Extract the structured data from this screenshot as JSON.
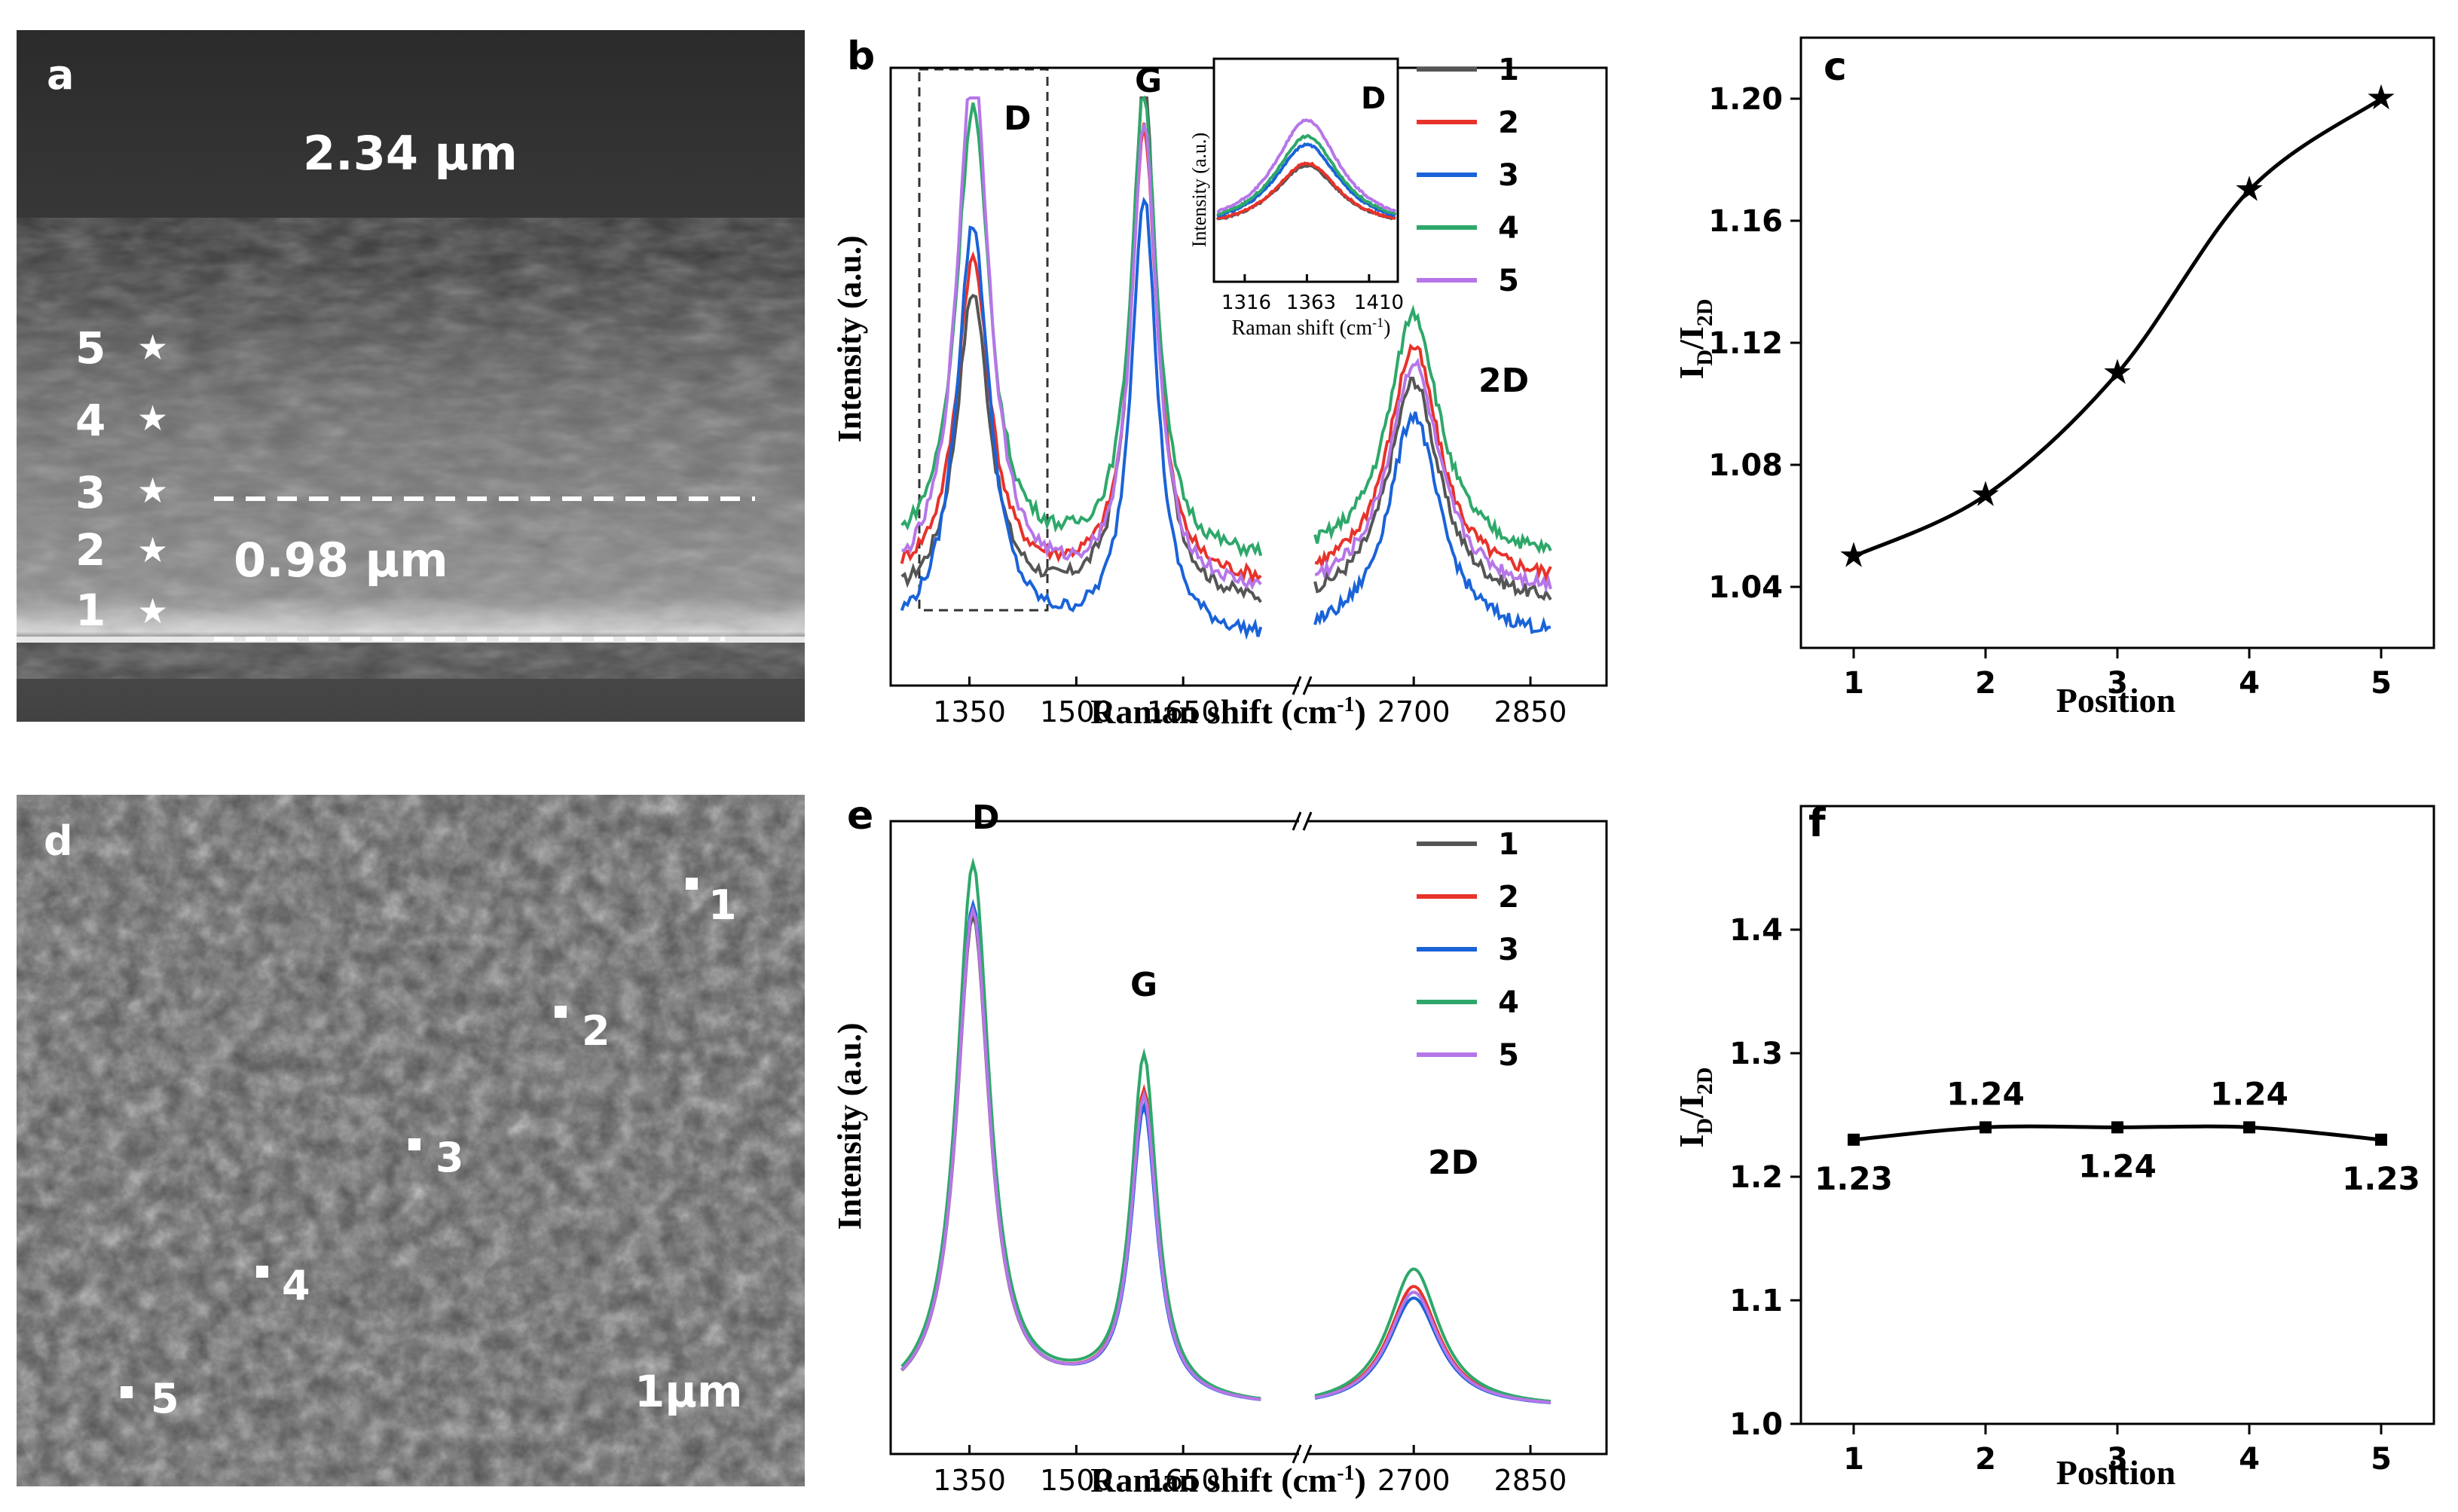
{
  "panel_a": {
    "label": "a",
    "thickness_top": "2.34 μm",
    "thickness_bottom": "0.98 μm",
    "positions": [
      "1",
      "2",
      "3",
      "4",
      "5"
    ],
    "star_color": "#ffffff"
  },
  "panel_d": {
    "label": "d",
    "positions": [
      "1",
      "2",
      "3",
      "4",
      "5"
    ],
    "scale_bar": "1μm"
  },
  "chart_data": [
    {
      "id": "b",
      "panel_label": "b",
      "type": "line",
      "title": "",
      "xlabel": "Raman shift (cm",
      "xlabel_sup": "-1",
      "xlabel_end": ")",
      "ylabel": "Intensity (a.u.)",
      "xticks_left": [
        1350,
        1500,
        1650
      ],
      "xticks_right": [
        2700,
        2850
      ],
      "xlim_left": [
        1250,
        1800
      ],
      "xlim_right": [
        2570,
        2880
      ],
      "peaks": [
        "D",
        "G",
        "2D"
      ],
      "legend": [
        "1",
        "2",
        "3",
        "4",
        "5"
      ],
      "series_colors": [
        "#555555",
        "#e8322a",
        "#1a63d8",
        "#2ea86a",
        "#b676e8"
      ],
      "series": [
        {
          "name": "1",
          "D": 0.55,
          "G": 0.92,
          "D2": 0.4,
          "base": 0.1
        },
        {
          "name": "2",
          "D": 0.57,
          "G": 0.8,
          "D2": 0.42,
          "base": 0.14
        },
        {
          "name": "3",
          "D": 0.73,
          "G": 0.78,
          "D2": 0.4,
          "base": 0.04
        },
        {
          "name": "4",
          "D": 0.8,
          "G": 0.82,
          "D2": 0.44,
          "base": 0.18
        },
        {
          "name": "5",
          "D": 0.94,
          "G": 0.82,
          "D2": 0.41,
          "base": 0.12
        }
      ],
      "inset": {
        "peak_label": "D",
        "xlabel": "Raman shift (cm",
        "xlabel_sup": "-1",
        "xlabel_end": ")",
        "ylabel": "Intensity (a.u.)",
        "xticks": [
          1316,
          1363,
          1410
        ]
      }
    },
    {
      "id": "c",
      "panel_label": "c",
      "type": "line",
      "xlabel": "Position",
      "ylabel_main": "I",
      "ylabel_sub1": "D",
      "ylabel_slash": "/I",
      "ylabel_sub2": "2D",
      "x": [
        1,
        2,
        3,
        4,
        5
      ],
      "values": [
        1.05,
        1.07,
        1.11,
        1.17,
        1.2
      ],
      "ylim": [
        1.02,
        1.22
      ],
      "yticks": [
        "1.04",
        "1.08",
        "1.12",
        "1.16",
        "1.20"
      ],
      "xticks": [
        "1",
        "2",
        "3",
        "4",
        "5"
      ],
      "marker": "star"
    },
    {
      "id": "e",
      "panel_label": "e",
      "type": "line",
      "xlabel": "Raman shift (cm",
      "xlabel_sup": "-1",
      "xlabel_end": ")",
      "ylabel": "Intensity (a.u.)",
      "xticks_left": [
        1350,
        1500,
        1650
      ],
      "xticks_right": [
        2700,
        2850
      ],
      "xlim_left": [
        1250,
        1800
      ],
      "xlim_right": [
        2570,
        2880
      ],
      "peaks": [
        "D",
        "G",
        "2D"
      ],
      "legend": [
        "1",
        "2",
        "3",
        "4",
        "5"
      ],
      "series_colors": [
        "#555555",
        "#e8322a",
        "#1a63d8",
        "#2ea86a",
        "#b676e8"
      ],
      "series": [
        {
          "name": "1",
          "D": 0.84,
          "G": 0.52,
          "D2": 0.2
        },
        {
          "name": "2",
          "D": 0.85,
          "G": 0.53,
          "D2": 0.21
        },
        {
          "name": "3",
          "D": 0.86,
          "G": 0.5,
          "D2": 0.19
        },
        {
          "name": "4",
          "D": 0.93,
          "G": 0.59,
          "D2": 0.24
        },
        {
          "name": "5",
          "D": 0.85,
          "G": 0.52,
          "D2": 0.2
        }
      ]
    },
    {
      "id": "f",
      "panel_label": "f",
      "type": "line",
      "xlabel": "Position",
      "ylabel_main": "I",
      "ylabel_sub1": "D",
      "ylabel_slash": "/I",
      "ylabel_sub2": "2D",
      "x": [
        1,
        2,
        3,
        4,
        5
      ],
      "values": [
        1.23,
        1.24,
        1.24,
        1.24,
        1.23
      ],
      "point_labels": [
        "1.23",
        "1.24",
        "1.24",
        "1.24",
        "1.23"
      ],
      "ylim": [
        1.0,
        1.5
      ],
      "yticks": [
        "1.0",
        "1.1",
        "1.2",
        "1.3",
        "1.4"
      ],
      "xticks": [
        "1",
        "2",
        "3",
        "4",
        "5"
      ],
      "marker": "square"
    }
  ]
}
